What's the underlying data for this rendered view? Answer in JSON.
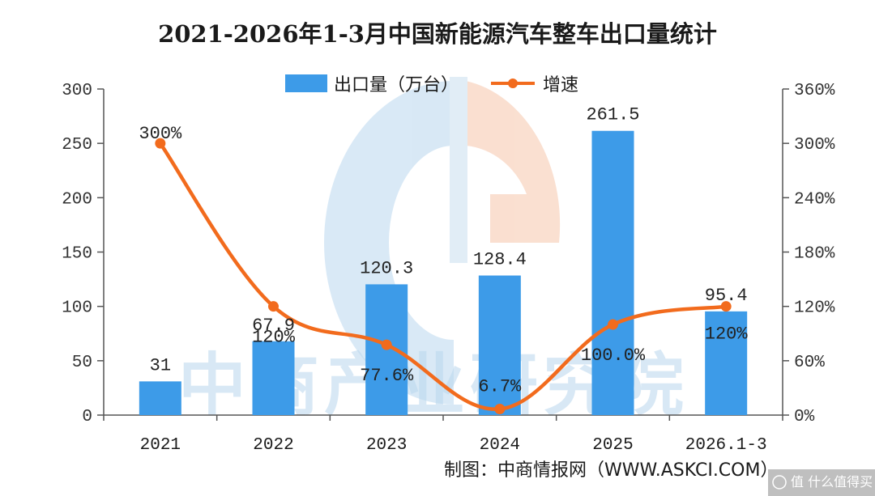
{
  "chart_data": {
    "type": "bar+line",
    "title": "2021-2026年1-3月中国新能源汽车整车出口量统计",
    "categories": [
      "2021",
      "2022",
      "2023",
      "2024",
      "2025",
      "2026.1-3"
    ],
    "series": [
      {
        "name": "出口量（万台）",
        "type": "bar",
        "axis": "left",
        "color": "#3d9be8",
        "values": [
          31,
          67.9,
          120.3,
          128.4,
          261.5,
          95.4
        ],
        "labels": [
          "31",
          "67.9",
          "120.3",
          "128.4",
          "261.5",
          "95.4"
        ]
      },
      {
        "name": "增速",
        "type": "line",
        "axis": "right",
        "color": "#f26b1d",
        "values": [
          300,
          120,
          77.6,
          6.7,
          100.0,
          120
        ],
        "labels": [
          "300%",
          "120%",
          "77.6%",
          "6.7%",
          "100.0%",
          "120%"
        ]
      }
    ],
    "y_left": {
      "min": 0,
      "max": 300,
      "ticks": [
        "0",
        "50",
        "100",
        "150",
        "200",
        "250",
        "300"
      ]
    },
    "y_right": {
      "min": 0,
      "max": 360,
      "ticks": [
        "0%",
        "60%",
        "120%",
        "180%",
        "240%",
        "300%",
        "360%"
      ]
    },
    "grid": false,
    "legend_position": "top-center"
  },
  "source": "制图：中商情报网（WWW.ASKCI.COM）",
  "watermark": {
    "text": "中商产业研究院",
    "logo": "askci-logo-watermark"
  },
  "corner_badge": {
    "text": "值 什么值得买",
    "icon": "smzdm-icon"
  }
}
